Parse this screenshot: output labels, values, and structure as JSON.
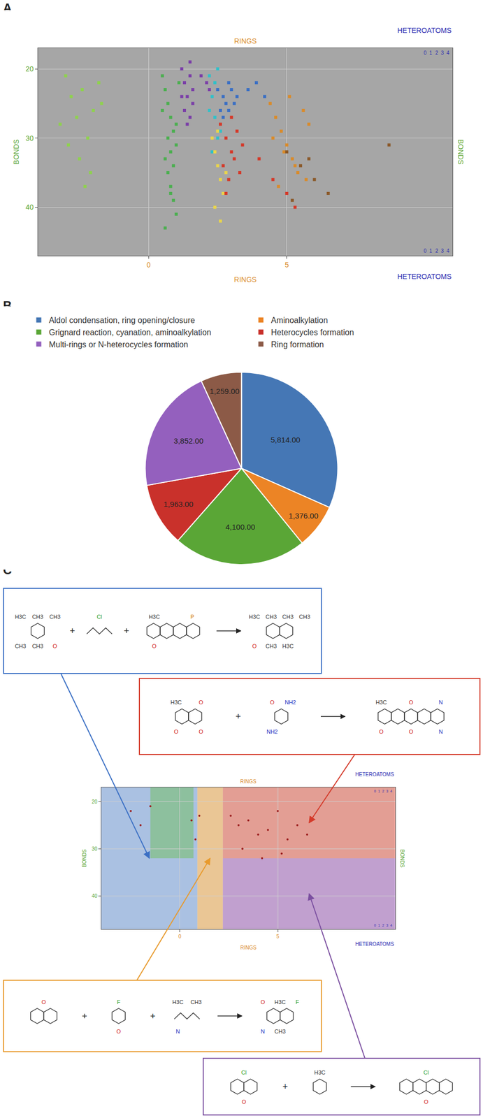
{
  "panel_labels": [
    "A",
    "B",
    "C"
  ],
  "chart_data": [
    {
      "type": "scatter",
      "marker": "square",
      "grid": true,
      "x_label": "RINGS",
      "y_label": "BONDS",
      "z_label": "HETEROATOMS",
      "zticks": [
        0,
        1,
        2,
        3,
        4
      ],
      "xlim": [
        -4,
        11
      ],
      "xticks": [
        0,
        5
      ],
      "ylim": [
        47,
        17
      ],
      "yticks": [
        20,
        30,
        40
      ],
      "series": [
        {
          "color": "#8fd14f",
          "x": [
            -3.0,
            -2.8,
            -2.6,
            -2.4,
            -2.2,
            -2.0,
            -1.8,
            -3.2,
            -2.5,
            -2.1,
            -1.7,
            -2.9,
            -2.3
          ],
          "y": [
            21,
            24,
            27,
            23,
            30,
            26,
            22,
            28,
            33,
            35,
            25,
            31,
            37
          ]
        },
        {
          "color": "#4caf50",
          "x": [
            0.5,
            0.6,
            0.7,
            0.8,
            0.9,
            1.0,
            0.6,
            0.7,
            0.8,
            0.9,
            1.0,
            1.1,
            0.5,
            0.7,
            0.9,
            0.8,
            0.6,
            1.0,
            0.8
          ],
          "y": [
            21,
            23,
            25,
            27,
            29,
            31,
            33,
            35,
            37,
            39,
            41,
            22,
            26,
            30,
            34,
            38,
            43,
            28,
            32
          ]
        },
        {
          "color": "#7b3fa8",
          "x": [
            1.2,
            1.3,
            1.4,
            1.5,
            1.6,
            1.3,
            1.5,
            1.4,
            1.6,
            1.2,
            1.5,
            1.9,
            2.1,
            2.2
          ],
          "y": [
            20,
            22,
            24,
            21,
            23,
            26,
            27,
            28,
            25,
            24,
            19,
            21,
            22,
            23
          ]
        },
        {
          "color": "#33c0c8",
          "x": [
            2.2,
            2.3,
            2.4,
            2.5,
            2.3,
            2.4,
            2.6,
            2.2,
            2.5
          ],
          "y": [
            21,
            24,
            27,
            30,
            32,
            22,
            29,
            26,
            20
          ]
        },
        {
          "color": "#e8d44d",
          "x": [
            2.3,
            2.4,
            2.5,
            2.6,
            2.7,
            2.4,
            2.6,
            2.5,
            2.8
          ],
          "y": [
            30,
            32,
            34,
            36,
            38,
            40,
            42,
            29,
            35
          ]
        },
        {
          "color": "#3a6fc4",
          "x": [
            2.5,
            2.7,
            2.9,
            3.1,
            2.6,
            2.8,
            3.0,
            3.2,
            2.7,
            2.9,
            3.6,
            3.9,
            4.2
          ],
          "y": [
            23,
            24,
            22,
            25,
            26,
            25,
            23,
            24,
            27,
            26,
            23,
            22,
            24
          ]
        },
        {
          "color": "#d43a2a",
          "x": [
            2.6,
            2.8,
            3.0,
            3.2,
            3.4,
            2.7,
            2.9,
            3.1,
            3.3,
            2.8,
            3.0,
            4.0,
            4.5,
            5.0,
            5.3
          ],
          "y": [
            28,
            30,
            32,
            29,
            31,
            34,
            36,
            33,
            35,
            38,
            27,
            33,
            36,
            38,
            40
          ]
        },
        {
          "color": "#d98b2b",
          "x": [
            4.4,
            4.6,
            4.8,
            5.0,
            5.2,
            5.4,
            5.6,
            5.8,
            4.5,
            4.9,
            5.3,
            5.7,
            5.1,
            4.7
          ],
          "y": [
            25,
            27,
            29,
            31,
            33,
            35,
            26,
            28,
            30,
            32,
            34,
            36,
            24,
            37
          ]
        },
        {
          "color": "#8b5a2b",
          "x": [
            5.0,
            5.5,
            6.0,
            6.5,
            5.2,
            5.8,
            8.7
          ],
          "y": [
            32,
            34,
            36,
            38,
            39,
            33,
            31
          ]
        }
      ]
    },
    {
      "type": "pie",
      "legend": "top",
      "data_labels": true,
      "categories": [
        "Aldol condensation, ring opening/closure",
        "Aminoalkylation",
        "Grignard reaction, cyanation, aminoalkylation",
        "Heterocycles formation",
        "Multi-rings or N-heterocycles formation",
        "Ring formation"
      ],
      "values": [
        5814,
        1376,
        4100,
        1963,
        3852,
        1259
      ],
      "value_labels": [
        "5,814.00",
        "1,376.00",
        "4,100.00",
        "1,963.00",
        "3,852.00",
        "1,259.00"
      ],
      "colors": [
        "#4577b5",
        "#ec8425",
        "#5aa636",
        "#c9312b",
        "#9460be",
        "#8c5a47"
      ]
    },
    {
      "type": "scatter",
      "marker": "circle",
      "grid": true,
      "x_label": "RINGS",
      "y_label": "BONDS",
      "z_label": "HETEROATOMS",
      "zticks": [
        0,
        1,
        2,
        3,
        4
      ],
      "xlim": [
        -4,
        11
      ],
      "xticks": [
        0,
        5
      ],
      "ylim": [
        47,
        17
      ],
      "yticks": [
        20,
        30,
        40
      ],
      "regions": [
        {
          "color": "#5b8ed6",
          "x": [
            -4,
            0.9
          ],
          "y": [
            17,
            47
          ]
        },
        {
          "color": "#6abf4b",
          "x": [
            -1.5,
            0.7
          ],
          "y": [
            17,
            32
          ]
        },
        {
          "color": "#e89a2c",
          "x": [
            0.9,
            2.2
          ],
          "y": [
            17,
            47
          ]
        },
        {
          "color": "#d9412b",
          "x": [
            2.2,
            11
          ],
          "y": [
            17,
            32
          ]
        },
        {
          "color": "#8e44ad",
          "x": [
            2.2,
            11
          ],
          "y": [
            32,
            47
          ]
        }
      ],
      "series": [
        {
          "color": "#9b1c1c",
          "x": [
            -2.5,
            -2.0,
            -1.5,
            0.6,
            0.8,
            1.0,
            2.6,
            3.0,
            3.5,
            4.0,
            4.5,
            5.0,
            5.5,
            6.0,
            6.5,
            3.2,
            4.2,
            5.2
          ],
          "y": [
            22,
            25,
            21,
            24,
            28,
            23,
            23,
            25,
            24,
            27,
            26,
            22,
            28,
            25,
            27,
            30,
            32,
            31
          ]
        }
      ]
    }
  ],
  "reactions": [
    {
      "color": "#3a6fc4",
      "region": 0,
      "plus": "+",
      "reactants": [
        {
          "rings": 1,
          "labels": [
            "H3C",
            "CH3",
            "CH3",
            "CH3",
            "CH3",
            "O"
          ]
        },
        {
          "rings": 0,
          "labels": [
            "Cl"
          ]
        },
        {
          "rings": 4,
          "labels": [
            "H3C",
            "O",
            "P"
          ]
        }
      ],
      "product": {
        "rings": 2,
        "labels": [
          "H3C",
          "O",
          "CH3",
          "CH3",
          "CH3",
          "H3C",
          "CH3"
        ]
      }
    },
    {
      "color": "#d43a2a",
      "region": 3,
      "plus": "+",
      "reactants": [
        {
          "rings": 2,
          "labels": [
            "H3C",
            "O",
            "O",
            "O"
          ]
        },
        {
          "rings": 1,
          "labels": [
            "O",
            "NH2",
            "NH2"
          ]
        }
      ],
      "product": {
        "rings": 5,
        "labels": [
          "H3C",
          "O",
          "O",
          "O",
          "N",
          "N"
        ]
      }
    },
    {
      "color": "#e89a2c",
      "region": 2,
      "plus": "+",
      "reactants": [
        {
          "rings": 2,
          "labels": [
            "O"
          ]
        },
        {
          "rings": 1,
          "labels": [
            "F",
            "O"
          ]
        },
        {
          "rings": 0,
          "labels": [
            "H3C",
            "N",
            "CH3"
          ]
        }
      ],
      "product": {
        "rings": 2,
        "labels": [
          "O",
          "N",
          "H3C",
          "CH3",
          "F"
        ]
      }
    },
    {
      "color": "#7b4fa0",
      "region": 4,
      "plus": "+",
      "reactants": [
        {
          "rings": 2,
          "labels": [
            "Cl",
            "O"
          ]
        },
        {
          "rings": 1,
          "labels": [
            "H3C"
          ]
        }
      ],
      "product": {
        "rings": 4,
        "labels": [
          "Cl",
          "O"
        ]
      }
    }
  ]
}
